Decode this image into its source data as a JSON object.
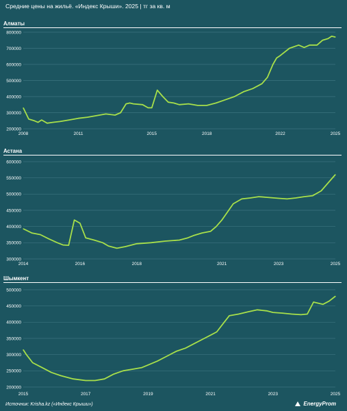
{
  "header": {
    "title": "Средние цены на жильё. «Индекс Крыши». 2025",
    "unit": "тг за кв. м"
  },
  "footer": {
    "source": "Источник: Krisha.kz («Индекс Крыши»)",
    "brand": "EnergyProm"
  },
  "colors": {
    "background": "#1c5560",
    "line": "#a8e04a",
    "grid": "#ffffff"
  },
  "chart_data": [
    {
      "type": "line",
      "panel": "Алматы",
      "xlim": [
        2008,
        2025
      ],
      "ylim": [
        200000,
        800000
      ],
      "x_ticks": [
        "2008",
        "2011",
        "2015",
        "2018",
        "2022",
        "2025"
      ],
      "y_ticks": [
        "200000",
        "300000",
        "400000",
        "500000",
        "600000",
        "700000",
        "800000"
      ],
      "x": [
        2008.0,
        2008.3,
        2008.6,
        2008.8,
        2009.0,
        2009.3,
        2009.6,
        2010.0,
        2010.5,
        2011.0,
        2011.5,
        2012.0,
        2012.5,
        2013.0,
        2013.3,
        2013.6,
        2013.8,
        2014.0,
        2014.5,
        2014.8,
        2015.0,
        2015.3,
        2015.6,
        2015.9,
        2016.2,
        2016.5,
        2017.0,
        2017.5,
        2018.0,
        2018.5,
        2019.0,
        2019.5,
        2020.0,
        2020.5,
        2021.0,
        2021.3,
        2021.6,
        2021.8,
        2022.0,
        2022.5,
        2023.0,
        2023.3,
        2023.6,
        2024.0,
        2024.3,
        2024.6,
        2024.8,
        2025.0
      ],
      "y": [
        330000,
        260000,
        250000,
        240000,
        255000,
        235000,
        240000,
        245000,
        255000,
        265000,
        272000,
        282000,
        292000,
        285000,
        300000,
        355000,
        360000,
        355000,
        350000,
        330000,
        330000,
        440000,
        400000,
        365000,
        360000,
        350000,
        355000,
        345000,
        345000,
        360000,
        380000,
        400000,
        430000,
        450000,
        480000,
        520000,
        600000,
        640000,
        655000,
        700000,
        720000,
        705000,
        720000,
        720000,
        750000,
        760000,
        775000,
        770000
      ]
    },
    {
      "type": "line",
      "panel": "Астана",
      "xlim": [
        2014,
        2025
      ],
      "ylim": [
        300000,
        600000
      ],
      "x_ticks": [
        "2014",
        "2016",
        "2018",
        "2021",
        "2023",
        "2025"
      ],
      "y_ticks": [
        "300000",
        "350000",
        "400000",
        "450000",
        "500000",
        "550000",
        "600000"
      ],
      "x": [
        2014.0,
        2014.3,
        2014.6,
        2014.9,
        2015.2,
        2015.4,
        2015.6,
        2015.8,
        2016.0,
        2016.2,
        2016.5,
        2016.8,
        2017.0,
        2017.3,
        2017.6,
        2018.0,
        2018.5,
        2019.0,
        2019.5,
        2019.8,
        2020.0,
        2020.3,
        2020.6,
        2020.8,
        2021.0,
        2021.2,
        2021.4,
        2021.7,
        2022.0,
        2022.3,
        2022.6,
        2023.0,
        2023.3,
        2023.6,
        2023.9,
        2024.2,
        2024.5,
        2024.8,
        2025.0
      ],
      "y": [
        393000,
        380000,
        375000,
        362000,
        350000,
        343000,
        342000,
        420000,
        410000,
        365000,
        358000,
        350000,
        340000,
        333000,
        338000,
        347000,
        350000,
        355000,
        358000,
        365000,
        372000,
        380000,
        385000,
        400000,
        420000,
        445000,
        470000,
        485000,
        488000,
        492000,
        490000,
        487000,
        485000,
        488000,
        492000,
        495000,
        510000,
        540000,
        560000
      ]
    },
    {
      "type": "line",
      "panel": "Шымкент",
      "xlim": [
        2015,
        2025
      ],
      "ylim": [
        200000,
        500000
      ],
      "x_ticks": [
        "2015",
        "2017",
        "2019",
        "2021",
        "2023",
        "2025"
      ],
      "y_ticks": [
        "200000",
        "250000",
        "300000",
        "350000",
        "400000",
        "450000",
        "500000"
      ],
      "x": [
        2015.0,
        2015.1,
        2015.3,
        2015.6,
        2015.9,
        2016.2,
        2016.6,
        2017.0,
        2017.3,
        2017.6,
        2017.9,
        2018.2,
        2018.5,
        2018.8,
        2019.0,
        2019.3,
        2019.6,
        2019.9,
        2020.2,
        2020.5,
        2020.8,
        2021.0,
        2021.2,
        2021.4,
        2021.6,
        2021.9,
        2022.2,
        2022.5,
        2022.8,
        2023.0,
        2023.3,
        2023.6,
        2023.9,
        2024.1,
        2024.3,
        2024.6,
        2024.8,
        2025.0
      ],
      "y": [
        315000,
        300000,
        275000,
        260000,
        245000,
        235000,
        225000,
        220000,
        220000,
        225000,
        240000,
        250000,
        255000,
        260000,
        268000,
        280000,
        295000,
        310000,
        320000,
        335000,
        350000,
        360000,
        370000,
        395000,
        420000,
        425000,
        432000,
        438000,
        435000,
        430000,
        428000,
        425000,
        423000,
        425000,
        462000,
        455000,
        465000,
        480000
      ]
    }
  ]
}
